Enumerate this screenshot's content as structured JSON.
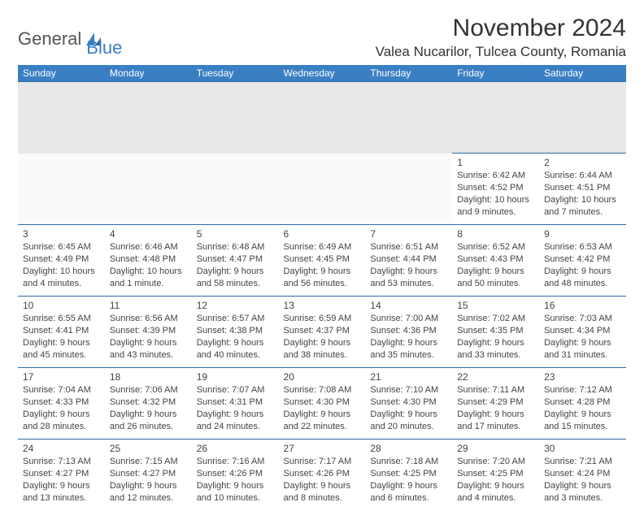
{
  "logo": {
    "general": "General",
    "blue": "Blue"
  },
  "title": "November 2024",
  "location": "Valea Nucarilor, Tulcea County, Romania",
  "colors": {
    "header_bg": "#3a7fc4",
    "header_text": "#ffffff",
    "cell_border": "#2f6aa8",
    "spacer_bg": "#e8e8e8",
    "body_text": "#333333"
  },
  "weekdays": [
    "Sunday",
    "Monday",
    "Tuesday",
    "Wednesday",
    "Thursday",
    "Friday",
    "Saturday"
  ],
  "weeks": [
    [
      null,
      null,
      null,
      null,
      null,
      {
        "n": "1",
        "sr": "Sunrise: 6:42 AM",
        "ss": "Sunset: 4:52 PM",
        "d1": "Daylight: 10 hours",
        "d2": "and 9 minutes."
      },
      {
        "n": "2",
        "sr": "Sunrise: 6:44 AM",
        "ss": "Sunset: 4:51 PM",
        "d1": "Daylight: 10 hours",
        "d2": "and 7 minutes."
      }
    ],
    [
      {
        "n": "3",
        "sr": "Sunrise: 6:45 AM",
        "ss": "Sunset: 4:49 PM",
        "d1": "Daylight: 10 hours",
        "d2": "and 4 minutes."
      },
      {
        "n": "4",
        "sr": "Sunrise: 6:46 AM",
        "ss": "Sunset: 4:48 PM",
        "d1": "Daylight: 10 hours",
        "d2": "and 1 minute."
      },
      {
        "n": "5",
        "sr": "Sunrise: 6:48 AM",
        "ss": "Sunset: 4:47 PM",
        "d1": "Daylight: 9 hours",
        "d2": "and 58 minutes."
      },
      {
        "n": "6",
        "sr": "Sunrise: 6:49 AM",
        "ss": "Sunset: 4:45 PM",
        "d1": "Daylight: 9 hours",
        "d2": "and 56 minutes."
      },
      {
        "n": "7",
        "sr": "Sunrise: 6:51 AM",
        "ss": "Sunset: 4:44 PM",
        "d1": "Daylight: 9 hours",
        "d2": "and 53 minutes."
      },
      {
        "n": "8",
        "sr": "Sunrise: 6:52 AM",
        "ss": "Sunset: 4:43 PM",
        "d1": "Daylight: 9 hours",
        "d2": "and 50 minutes."
      },
      {
        "n": "9",
        "sr": "Sunrise: 6:53 AM",
        "ss": "Sunset: 4:42 PM",
        "d1": "Daylight: 9 hours",
        "d2": "and 48 minutes."
      }
    ],
    [
      {
        "n": "10",
        "sr": "Sunrise: 6:55 AM",
        "ss": "Sunset: 4:41 PM",
        "d1": "Daylight: 9 hours",
        "d2": "and 45 minutes."
      },
      {
        "n": "11",
        "sr": "Sunrise: 6:56 AM",
        "ss": "Sunset: 4:39 PM",
        "d1": "Daylight: 9 hours",
        "d2": "and 43 minutes."
      },
      {
        "n": "12",
        "sr": "Sunrise: 6:57 AM",
        "ss": "Sunset: 4:38 PM",
        "d1": "Daylight: 9 hours",
        "d2": "and 40 minutes."
      },
      {
        "n": "13",
        "sr": "Sunrise: 6:59 AM",
        "ss": "Sunset: 4:37 PM",
        "d1": "Daylight: 9 hours",
        "d2": "and 38 minutes."
      },
      {
        "n": "14",
        "sr": "Sunrise: 7:00 AM",
        "ss": "Sunset: 4:36 PM",
        "d1": "Daylight: 9 hours",
        "d2": "and 35 minutes."
      },
      {
        "n": "15",
        "sr": "Sunrise: 7:02 AM",
        "ss": "Sunset: 4:35 PM",
        "d1": "Daylight: 9 hours",
        "d2": "and 33 minutes."
      },
      {
        "n": "16",
        "sr": "Sunrise: 7:03 AM",
        "ss": "Sunset: 4:34 PM",
        "d1": "Daylight: 9 hours",
        "d2": "and 31 minutes."
      }
    ],
    [
      {
        "n": "17",
        "sr": "Sunrise: 7:04 AM",
        "ss": "Sunset: 4:33 PM",
        "d1": "Daylight: 9 hours",
        "d2": "and 28 minutes."
      },
      {
        "n": "18",
        "sr": "Sunrise: 7:06 AM",
        "ss": "Sunset: 4:32 PM",
        "d1": "Daylight: 9 hours",
        "d2": "and 26 minutes."
      },
      {
        "n": "19",
        "sr": "Sunrise: 7:07 AM",
        "ss": "Sunset: 4:31 PM",
        "d1": "Daylight: 9 hours",
        "d2": "and 24 minutes."
      },
      {
        "n": "20",
        "sr": "Sunrise: 7:08 AM",
        "ss": "Sunset: 4:30 PM",
        "d1": "Daylight: 9 hours",
        "d2": "and 22 minutes."
      },
      {
        "n": "21",
        "sr": "Sunrise: 7:10 AM",
        "ss": "Sunset: 4:30 PM",
        "d1": "Daylight: 9 hours",
        "d2": "and 20 minutes."
      },
      {
        "n": "22",
        "sr": "Sunrise: 7:11 AM",
        "ss": "Sunset: 4:29 PM",
        "d1": "Daylight: 9 hours",
        "d2": "and 17 minutes."
      },
      {
        "n": "23",
        "sr": "Sunrise: 7:12 AM",
        "ss": "Sunset: 4:28 PM",
        "d1": "Daylight: 9 hours",
        "d2": "and 15 minutes."
      }
    ],
    [
      {
        "n": "24",
        "sr": "Sunrise: 7:13 AM",
        "ss": "Sunset: 4:27 PM",
        "d1": "Daylight: 9 hours",
        "d2": "and 13 minutes."
      },
      {
        "n": "25",
        "sr": "Sunrise: 7:15 AM",
        "ss": "Sunset: 4:27 PM",
        "d1": "Daylight: 9 hours",
        "d2": "and 12 minutes."
      },
      {
        "n": "26",
        "sr": "Sunrise: 7:16 AM",
        "ss": "Sunset: 4:26 PM",
        "d1": "Daylight: 9 hours",
        "d2": "and 10 minutes."
      },
      {
        "n": "27",
        "sr": "Sunrise: 7:17 AM",
        "ss": "Sunset: 4:26 PM",
        "d1": "Daylight: 9 hours",
        "d2": "and 8 minutes."
      },
      {
        "n": "28",
        "sr": "Sunrise: 7:18 AM",
        "ss": "Sunset: 4:25 PM",
        "d1": "Daylight: 9 hours",
        "d2": "and 6 minutes."
      },
      {
        "n": "29",
        "sr": "Sunrise: 7:20 AM",
        "ss": "Sunset: 4:25 PM",
        "d1": "Daylight: 9 hours",
        "d2": "and 4 minutes."
      },
      {
        "n": "30",
        "sr": "Sunrise: 7:21 AM",
        "ss": "Sunset: 4:24 PM",
        "d1": "Daylight: 9 hours",
        "d2": "and 3 minutes."
      }
    ]
  ]
}
